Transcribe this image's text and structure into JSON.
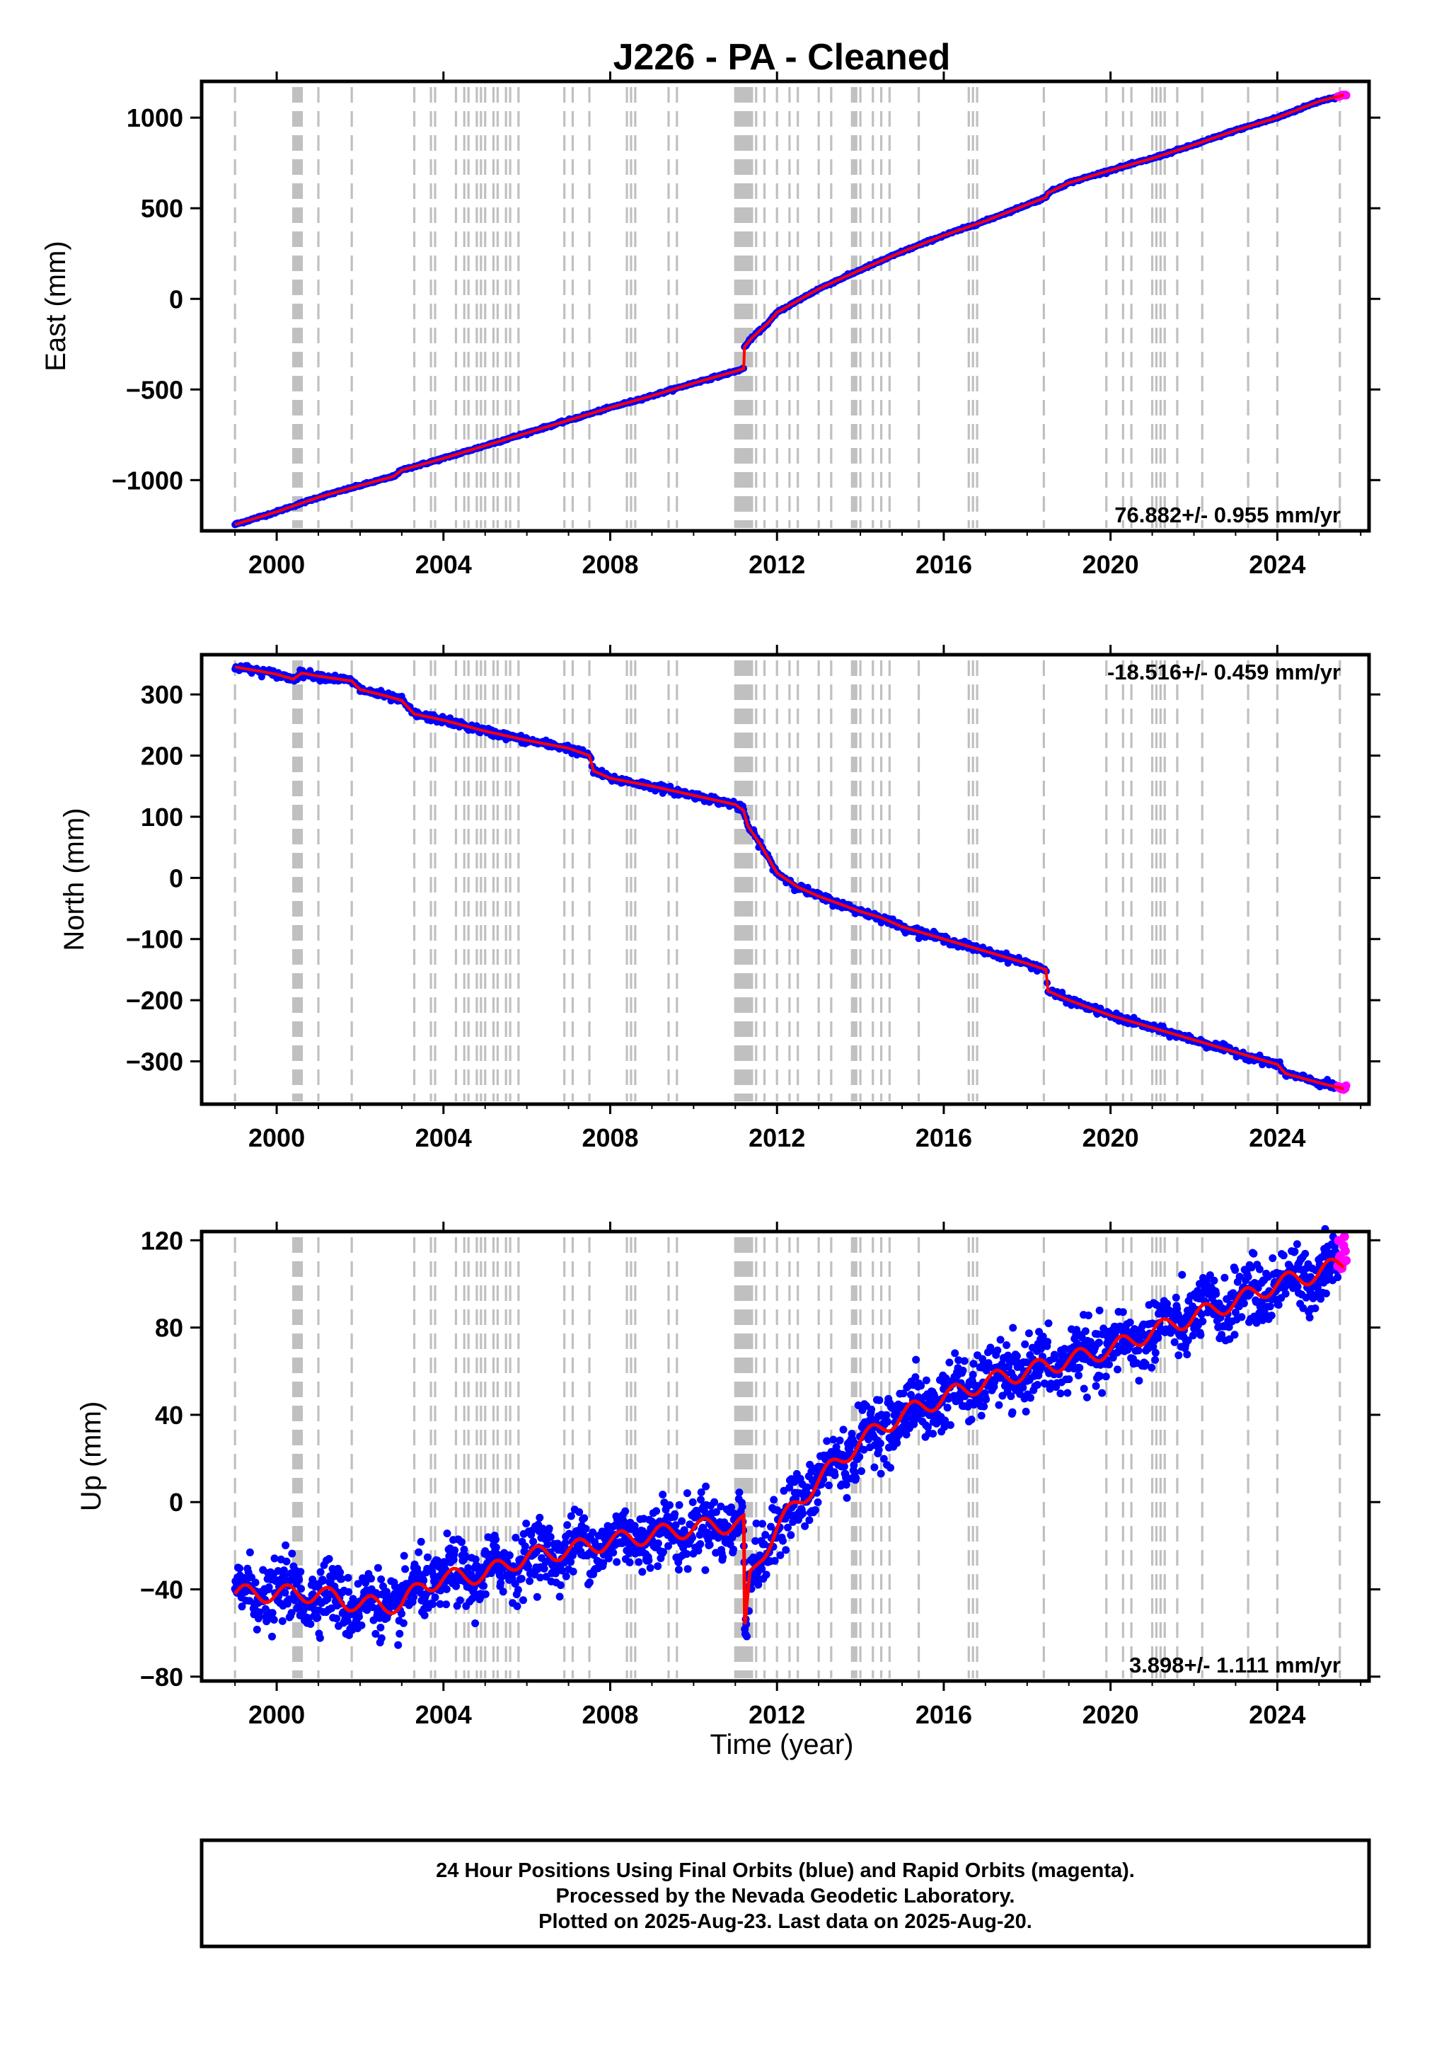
{
  "title": "J226  - PA - Cleaned",
  "xlabel": "Time (year)",
  "footer": {
    "line1": "24 Hour Positions Using Final Orbits (blue) and Rapid Orbits (magenta).",
    "line2": "Processed by the Nevada Geodetic Laboratory.",
    "line3": "Plotted on 2025-Aug-23. Last data on 2025-Aug-20."
  },
  "colors": {
    "final_orbits": "#0000ff",
    "rapid_orbits": "#ff00ff",
    "model": "#ff0000",
    "event_lines": "#c0c0c0",
    "frame": "#000000"
  },
  "chart_data": [
    {
      "type": "scatter",
      "ylabel": "East (mm)",
      "rate": "76.882+/- 0.955 mm/yr",
      "rate_position": "bottom-right",
      "xlim": [
        1998.2,
        2026.2
      ],
      "ylim": [
        -1280,
        1200
      ],
      "xticks": [
        2000,
        2004,
        2008,
        2012,
        2016,
        2020,
        2024
      ],
      "yticks": [
        -1000,
        -500,
        0,
        500,
        1000
      ],
      "trend": [
        [
          1999.0,
          -1245
        ],
        [
          2000.0,
          -1175
        ],
        [
          2001.0,
          -1095
        ],
        [
          2002.0,
          -1030
        ],
        [
          2002.8,
          -980
        ],
        [
          2003.0,
          -945
        ],
        [
          2004.0,
          -880
        ],
        [
          2005.0,
          -810
        ],
        [
          2006.0,
          -740
        ],
        [
          2007.0,
          -670
        ],
        [
          2008.0,
          -600
        ],
        [
          2009.0,
          -535
        ],
        [
          2010.0,
          -465
        ],
        [
          2011.0,
          -400
        ],
        [
          2011.2,
          -385
        ],
        [
          2011.22,
          -265
        ],
        [
          2011.4,
          -215
        ],
        [
          2011.8,
          -130
        ],
        [
          2012.0,
          -75
        ],
        [
          2012.5,
          -10
        ],
        [
          2013.0,
          55
        ],
        [
          2014.0,
          160
        ],
        [
          2015.0,
          260
        ],
        [
          2016.0,
          350
        ],
        [
          2017.0,
          430
        ],
        [
          2018.0,
          520
        ],
        [
          2018.45,
          560
        ],
        [
          2018.5,
          585
        ],
        [
          2019.0,
          640
        ],
        [
          2020.0,
          710
        ],
        [
          2021.0,
          775
        ],
        [
          2022.0,
          850
        ],
        [
          2023.0,
          930
        ],
        [
          2024.0,
          1000
        ],
        [
          2025.0,
          1090
        ],
        [
          2025.6,
          1125
        ]
      ]
    },
    {
      "type": "scatter",
      "ylabel": "North (mm)",
      "rate": "-18.516+/- 0.459 mm/yr",
      "rate_position": "top-right",
      "xlim": [
        1998.2,
        2026.2
      ],
      "ylim": [
        -370,
        365
      ],
      "xticks": [
        2000,
        2004,
        2008,
        2012,
        2016,
        2020,
        2024
      ],
      "yticks": [
        -300,
        -200,
        -100,
        0,
        100,
        200,
        300
      ],
      "trend": [
        [
          1999.0,
          345
        ],
        [
          1999.6,
          338
        ],
        [
          2000.0,
          333
        ],
        [
          2000.4,
          325
        ],
        [
          2000.6,
          335
        ],
        [
          2001.0,
          330
        ],
        [
          2001.8,
          322
        ],
        [
          2002.0,
          308
        ],
        [
          2002.6,
          298
        ],
        [
          2003.0,
          290
        ],
        [
          2003.3,
          268
        ],
        [
          2004.0,
          258
        ],
        [
          2005.0,
          240
        ],
        [
          2006.0,
          225
        ],
        [
          2007.0,
          212
        ],
        [
          2007.5,
          200
        ],
        [
          2007.6,
          175
        ],
        [
          2008.0,
          163
        ],
        [
          2009.0,
          150
        ],
        [
          2010.0,
          135
        ],
        [
          2011.0,
          120
        ],
        [
          2011.2,
          110
        ],
        [
          2011.3,
          85
        ],
        [
          2011.6,
          55
        ],
        [
          2012.0,
          8
        ],
        [
          2012.5,
          -15
        ],
        [
          2013.0,
          -30
        ],
        [
          2014.0,
          -55
        ],
        [
          2014.5,
          -65
        ],
        [
          2015.0,
          -80
        ],
        [
          2016.0,
          -100
        ],
        [
          2017.0,
          -120
        ],
        [
          2018.0,
          -140
        ],
        [
          2018.45,
          -150
        ],
        [
          2018.5,
          -185
        ],
        [
          2019.0,
          -200
        ],
        [
          2020.0,
          -225
        ],
        [
          2021.0,
          -245
        ],
        [
          2022.0,
          -265
        ],
        [
          2023.0,
          -285
        ],
        [
          2024.0,
          -305
        ],
        [
          2024.2,
          -320
        ],
        [
          2025.0,
          -335
        ],
        [
          2025.6,
          -345
        ]
      ]
    },
    {
      "type": "scatter",
      "ylabel": "Up (mm)",
      "rate": "3.898+/- 1.111 mm/yr",
      "rate_position": "bottom-right",
      "xlim": [
        1998.2,
        2026.2
      ],
      "ylim": [
        -82,
        124
      ],
      "xticks": [
        2000,
        2004,
        2008,
        2012,
        2016,
        2020,
        2024
      ],
      "yticks": [
        -80,
        -40,
        0,
        40,
        80,
        120
      ],
      "trend": [
        [
          1999.0,
          -42
        ],
        [
          2000.0,
          -42
        ],
        [
          2001.0,
          -42
        ],
        [
          2002.0,
          -47
        ],
        [
          2003.0,
          -47
        ],
        [
          2003.5,
          -38
        ],
        [
          2004.0,
          -35
        ],
        [
          2005.0,
          -33
        ],
        [
          2006.0,
          -25
        ],
        [
          2007.0,
          -22
        ],
        [
          2008.0,
          -18
        ],
        [
          2009.0,
          -15
        ],
        [
          2010.0,
          -12
        ],
        [
          2011.0,
          -10
        ],
        [
          2011.2,
          -10
        ],
        [
          2011.23,
          -60
        ],
        [
          2011.35,
          -35
        ],
        [
          2011.6,
          -25
        ],
        [
          2012.0,
          -12
        ],
        [
          2012.5,
          0
        ],
        [
          2013.0,
          10
        ],
        [
          2014.0,
          28
        ],
        [
          2015.0,
          40
        ],
        [
          2016.0,
          48
        ],
        [
          2017.0,
          55
        ],
        [
          2018.0,
          60
        ],
        [
          2019.0,
          65
        ],
        [
          2020.0,
          70
        ],
        [
          2021.0,
          78
        ],
        [
          2022.0,
          85
        ],
        [
          2023.0,
          92
        ],
        [
          2024.0,
          100
        ],
        [
          2025.0,
          105
        ],
        [
          2025.6,
          110
        ]
      ],
      "seasonal_amplitude": 4,
      "scatter_sigma": 7
    }
  ],
  "event_lines": [
    1999.0,
    2000.4,
    2000.45,
    2000.5,
    2000.55,
    2000.6,
    2001.0,
    2001.8,
    2003.3,
    2003.7,
    2003.8,
    2004.3,
    2004.5,
    2004.6,
    2004.8,
    2004.9,
    2005.0,
    2005.2,
    2005.3,
    2005.5,
    2005.6,
    2005.8,
    2006.9,
    2007.1,
    2007.5,
    2008.4,
    2008.5,
    2008.6,
    2009.4,
    2009.6,
    2011.0,
    2011.05,
    2011.1,
    2011.15,
    2011.2,
    2011.25,
    2011.3,
    2011.35,
    2011.4,
    2011.5,
    2011.7,
    2012.0,
    2012.3,
    2012.5,
    2013.0,
    2013.3,
    2013.8,
    2013.85,
    2013.9,
    2014.0,
    2014.3,
    2014.5,
    2014.7,
    2015.4,
    2016.6,
    2016.7,
    2016.8,
    2018.4,
    2019.9,
    2020.3,
    2020.5,
    2021.0,
    2021.1,
    2021.2,
    2021.3,
    2021.6,
    2022.2,
    2023.3,
    2024.0,
    2025.5
  ]
}
